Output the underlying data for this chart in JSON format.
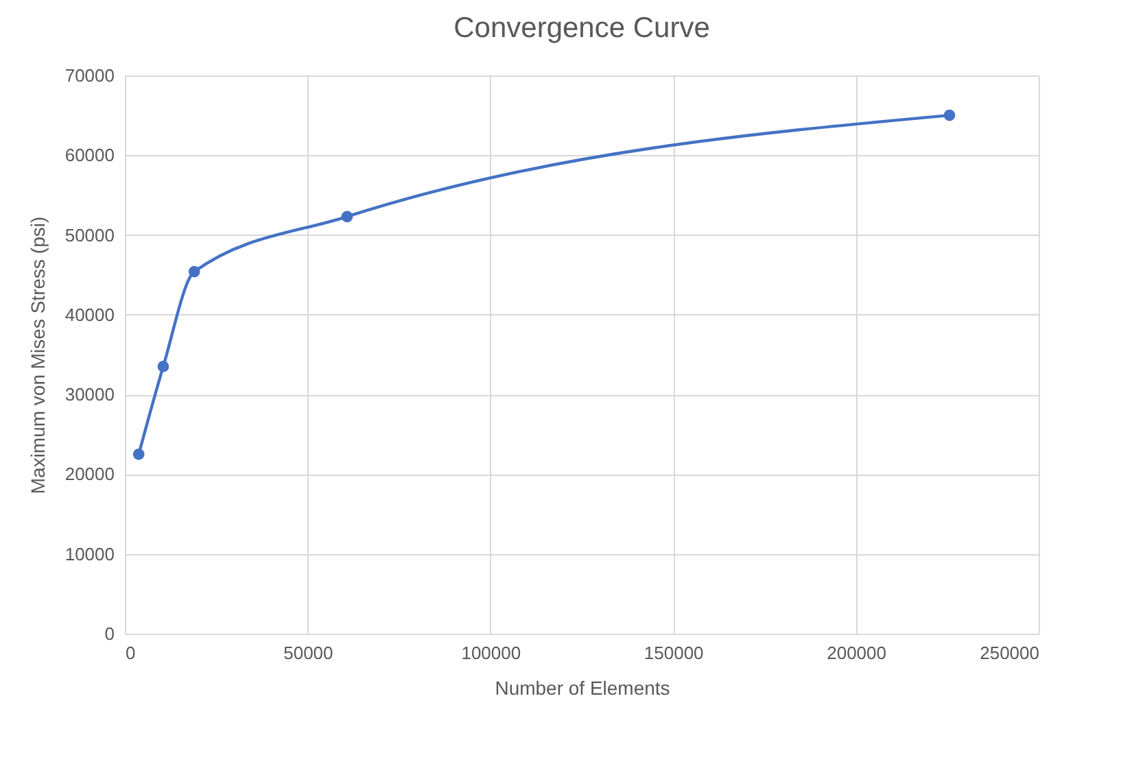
{
  "chart_data": {
    "type": "line",
    "title": "Convergence Curve",
    "xlabel": "Number of Elements",
    "ylabel": "Maximum von Mises Stress (psi)",
    "x": [
      3800,
      10500,
      19000,
      60800,
      225600
    ],
    "series": [
      {
        "color": "#4472c4",
        "values": [
          22500,
          33500,
          45400,
          52300,
          65000
        ]
      }
    ],
    "xlim": [
      0,
      250000
    ],
    "xticks": [
      0,
      50000,
      100000,
      150000,
      200000,
      250000
    ],
    "ylim": [
      0,
      70000
    ],
    "yticks": [
      0,
      10000,
      20000,
      30000,
      40000,
      50000,
      60000,
      70000
    ],
    "grid": true,
    "marker": "circle",
    "line_style": "solid"
  }
}
